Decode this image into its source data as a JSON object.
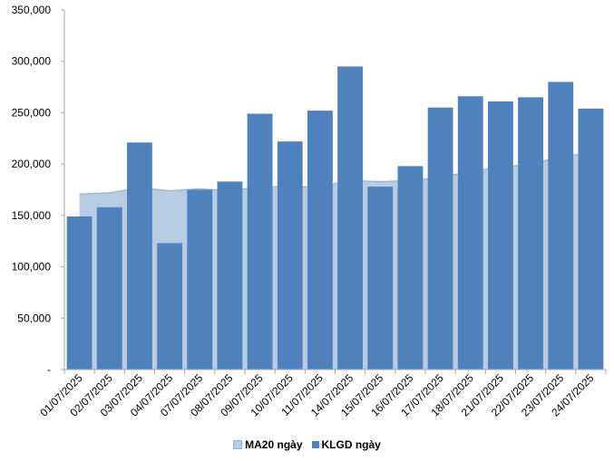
{
  "chart_data": {
    "type": "bar",
    "title": "",
    "xlabel": "",
    "ylabel": "",
    "ylim": [
      0,
      350000
    ],
    "y_ticks": [
      "-",
      "50,000",
      "100,000",
      "150,000",
      "200,000",
      "250,000",
      "300,000",
      "350,000"
    ],
    "y_tick_values": [
      0,
      50000,
      100000,
      150000,
      200000,
      250000,
      300000,
      350000
    ],
    "grid": false,
    "legend_position": "bottom",
    "categories": [
      "01/07/2025",
      "02/07/2025",
      "03/07/2025",
      "04/07/2025",
      "07/07/2025",
      "08/07/2025",
      "09/07/2025",
      "10/07/2025",
      "11/07/2025",
      "14/07/2025",
      "15/07/2025",
      "16/07/2025",
      "17/07/2025",
      "18/07/2025",
      "21/07/2025",
      "22/07/2025",
      "23/07/2025",
      "24/07/2025"
    ],
    "series": [
      {
        "name": "MA20 ngày",
        "type": "area",
        "color": "#b8cce4",
        "line_color": "#95b3d7",
        "values": [
          171000,
          172000,
          177000,
          174000,
          176000,
          174000,
          178000,
          178000,
          178000,
          184000,
          183000,
          184000,
          187000,
          193000,
          197000,
          200000,
          207000,
          211000
        ]
      },
      {
        "name": "KLGD ngày",
        "type": "bar",
        "color": "#4f81bd",
        "values": [
          149000,
          158000,
          221000,
          123000,
          175000,
          183000,
          249000,
          222000,
          252000,
          295000,
          178000,
          198000,
          255000,
          266000,
          261000,
          265000,
          280000,
          254000
        ]
      }
    ]
  }
}
